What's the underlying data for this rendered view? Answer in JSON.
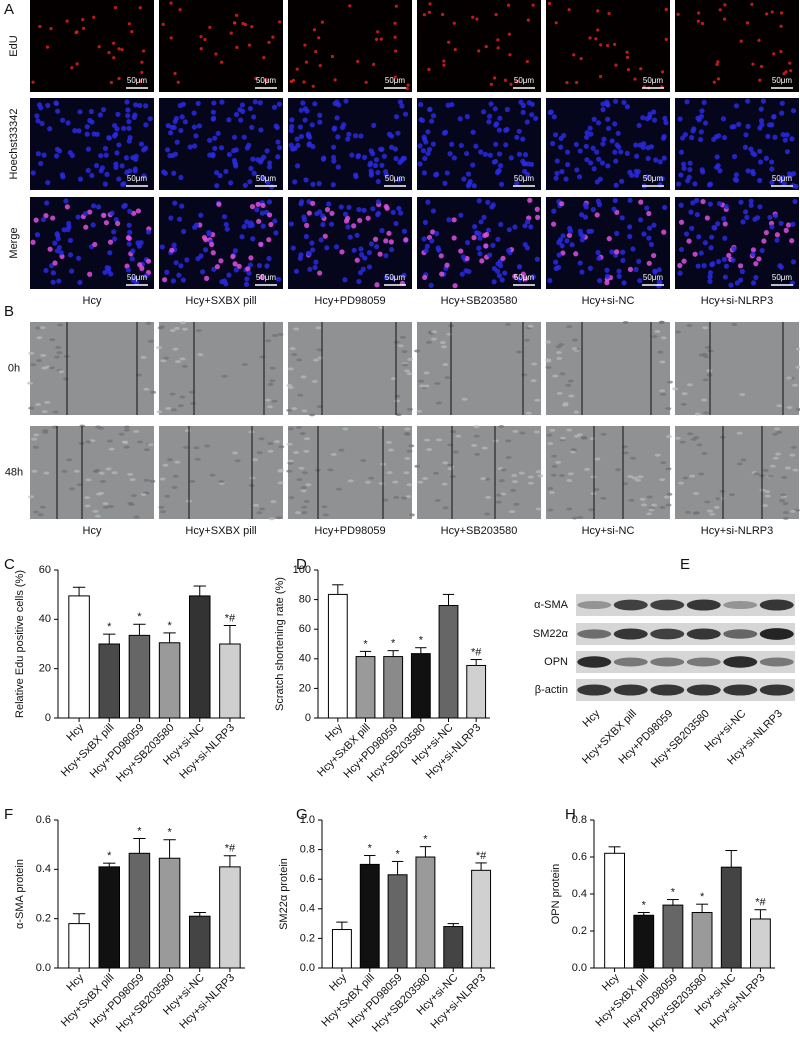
{
  "panels": {
    "letters": [
      "A",
      "B",
      "E"
    ],
    "A": {
      "rows": [
        "EdU",
        "Hoechst33342",
        "Merge"
      ],
      "scale_bar": "50μm"
    },
    "B": {
      "rows": [
        "0h",
        "48h"
      ]
    },
    "groups": [
      "Hcy",
      "Hcy+SXBX pill",
      "Hcy+PD98059",
      "Hcy+SB203580",
      "Hcy+si-NC",
      "Hcy+si-NLRP3"
    ],
    "E": {
      "proteins": [
        "α-SMA",
        "SM22α",
        "OPN",
        "β-actin"
      ],
      "categories": [
        "Hcy",
        "Hcy+SXBX pill",
        "Hcy+PD98059",
        "Hcy+SB203580",
        "Hcy+si-NC",
        "Hcy+si-NLRP3"
      ]
    }
  },
  "chart_data": [
    {
      "type": "bar",
      "label": "C",
      "ylabel": "Relative Edu positive cells (%)",
      "categories": [
        "Hcy",
        "Hcy+SxBX pill",
        "Hcy+PD98059",
        "Hcy+SB203580",
        "Hcy+si-NC",
        "Hcy+si-NLRP3"
      ],
      "values": [
        49.5,
        30,
        33.5,
        30.5,
        49.5,
        30
      ],
      "errors": [
        3.5,
        4,
        4.5,
        4,
        4,
        7.5
      ],
      "annotations": [
        null,
        "*",
        "*",
        "*",
        null,
        "*#"
      ],
      "colors": [
        "#ffffff",
        "#4a4a4a",
        "#666666",
        "#9a9a9a",
        "#333333",
        "#cfcfcf"
      ],
      "ylim": [
        0,
        60
      ],
      "yticks": [
        0,
        20,
        40,
        60
      ]
    },
    {
      "type": "bar",
      "label": "D",
      "ylabel": "Scratch shortening rate (%)",
      "categories": [
        "Hcy",
        "Hcy+SxBX pill",
        "Hcy+PD98059",
        "Hcy+SB203580",
        "Hcy+si-NC",
        "Hcy+si-NLRP3"
      ],
      "values": [
        83.5,
        41.5,
        41.5,
        43.5,
        76,
        35.5
      ],
      "errors": [
        6.5,
        3.5,
        4,
        4,
        7.5,
        4
      ],
      "annotations": [
        null,
        "*",
        "*",
        "*",
        null,
        "*#"
      ],
      "colors": [
        "#ffffff",
        "#9a9a9a",
        "#8a8a8a",
        "#111111",
        "#666666",
        "#d0d0d0"
      ],
      "ylim": [
        0,
        100
      ],
      "yticks": [
        0,
        20,
        40,
        60,
        80,
        100
      ]
    },
    {
      "type": "bar",
      "label": "F",
      "ylabel": "α-SMA protein",
      "categories": [
        "Hcy",
        "Hcy+SxBX pill",
        "Hcy+PD98059",
        "Hcy+SB203580",
        "Hcy+si-NC",
        "Hcy+si-NLRP3"
      ],
      "values": [
        0.18,
        0.41,
        0.465,
        0.445,
        0.21,
        0.41
      ],
      "errors": [
        0.04,
        0.015,
        0.06,
        0.075,
        0.015,
        0.045
      ],
      "annotations": [
        null,
        "*",
        "*",
        "*",
        null,
        "*#"
      ],
      "colors": [
        "#ffffff",
        "#111111",
        "#666666",
        "#9a9a9a",
        "#444444",
        "#d0d0d0"
      ],
      "ylim": [
        0,
        0.6
      ],
      "yticks": [
        {
          "value": 0,
          "label": "0.0"
        },
        0.2,
        0.4,
        0.6
      ]
    },
    {
      "type": "bar",
      "label": "G",
      "ylabel": "SM22α protein",
      "categories": [
        "Hcy",
        "Hcy+SxBX pill",
        "Hcy+PD98059",
        "Hcy+SB203580",
        "Hcy+si-NC",
        "Hcy+si-NLRP3"
      ],
      "values": [
        0.26,
        0.7,
        0.63,
        0.75,
        0.28,
        0.66
      ],
      "errors": [
        0.05,
        0.06,
        0.09,
        0.07,
        0.02,
        0.05
      ],
      "annotations": [
        null,
        "*",
        "*",
        "*",
        null,
        "*#"
      ],
      "colors": [
        "#ffffff",
        "#111111",
        "#666666",
        "#9a9a9a",
        "#444444",
        "#d0d0d0"
      ],
      "ylim": [
        0,
        1.0
      ],
      "yticks": [
        {
          "value": 0,
          "label": "0.0"
        },
        0.2,
        0.4,
        0.6,
        0.8,
        {
          "value": 1.0,
          "label": "1.0"
        }
      ]
    },
    {
      "type": "bar",
      "label": "H",
      "ylabel": "OPN protein",
      "categories": [
        "Hcy",
        "Hcy+SxBX pill",
        "Hcy+PD98059",
        "Hcy+SB203580",
        "Hcy+si-NC",
        "Hcy+si-NLRP3"
      ],
      "values": [
        0.62,
        0.285,
        0.34,
        0.3,
        0.545,
        0.265
      ],
      "errors": [
        0.035,
        0.015,
        0.03,
        0.045,
        0.09,
        0.05
      ],
      "annotations": [
        null,
        "*",
        "*",
        "*",
        null,
        "*#"
      ],
      "colors": [
        "#ffffff",
        "#111111",
        "#666666",
        "#9a9a9a",
        "#444444",
        "#d0d0d0"
      ],
      "ylim": [
        0,
        0.8
      ],
      "yticks": [
        {
          "value": 0,
          "label": "0.0"
        },
        0.2,
        0.4,
        0.6,
        0.8
      ]
    }
  ]
}
